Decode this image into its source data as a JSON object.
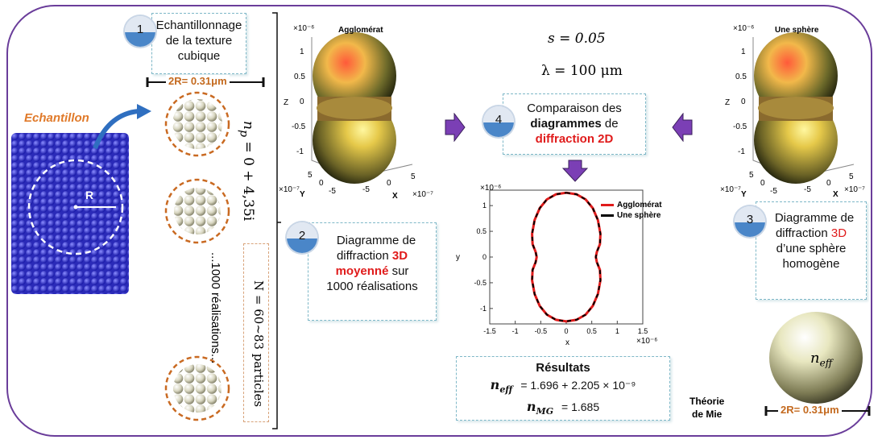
{
  "sample_label": "Echantillon",
  "radius_label": "R",
  "step1": {
    "number": "1",
    "text_line1": "Echantillonnage",
    "text_line2": "de la texture",
    "text_line3": "cubique"
  },
  "diameter_label": "2R= 0.31μm",
  "np_label": "n",
  "np_sub": "p",
  "np_value": " = 0 + 4,35i",
  "realizations_label": "...1000 réalisations...",
  "n_particles_label": "N = 60~83 particles",
  "step2": {
    "number": "2",
    "line1": "Diagramme de",
    "line2a": "diffraction ",
    "line2b": "3D",
    "line3a": "moyenné",
    "line3b": " sur",
    "line4": "1000 réalisations"
  },
  "plot_left": {
    "title": "Agglomérat",
    "exp": "×10⁻⁶",
    "z_ticks": [
      "1",
      "0.5",
      "0",
      "-0.5",
      "-1"
    ],
    "zlabel": "Z",
    "ylabel": "Y",
    "xlabel": "X",
    "exp2": "×10⁻⁷",
    "exp3": "×10⁻⁷",
    "y_ticks": [
      "5",
      "0",
      "-5"
    ],
    "x_ticks": [
      "-5",
      "0",
      "5"
    ]
  },
  "plot_right": {
    "title": "Une sphère",
    "exp": "×10⁻⁶",
    "z_ticks": [
      "1",
      "0.5",
      "0",
      "-0.5",
      "-1"
    ],
    "zlabel": "Z",
    "ylabel": "Y",
    "xlabel": "X",
    "exp2": "×10⁻⁷",
    "exp3": "×10⁻⁷",
    "y_ticks": [
      "5",
      "0",
      "-5"
    ],
    "x_ticks": [
      "-5",
      "0",
      "5"
    ]
  },
  "params": {
    "s": "s = 0.05",
    "lambda": "λ = 100 μm"
  },
  "step4": {
    "number": "4",
    "line1": "Comparaison des",
    "line2a": "diagrammes",
    "line2b": " de",
    "line3": "diffraction 2D"
  },
  "step3": {
    "number": "3",
    "line1": "Diagramme de",
    "line2a": "diffraction ",
    "line2b": "3D",
    "line3": "d’une sphère",
    "line4": "homogène"
  },
  "neff_label": "n",
  "neff_sub": "eff",
  "diameter_label2": "2R= 0.31μm",
  "results": {
    "title": "Résultats",
    "neff_name": "n",
    "neff_sub": "eff",
    "neff_value": "=   1.696 + 2.205 × 10⁻⁹",
    "nmg_name": "n",
    "nmg_sub": "MG",
    "nmg_value": "= 1.685"
  },
  "theory_line1": "Théorie",
  "theory_line2": "de Mie",
  "chart_data": {
    "type": "line",
    "title": "",
    "xlabel": "x",
    "ylabel": "y",
    "x_exp": "×10⁻⁶",
    "y_exp": "×10⁻⁶",
    "xlim": [
      -1.5,
      1.5
    ],
    "ylim": [
      -1.3,
      1.3
    ],
    "x_ticks": [
      -1.5,
      -1,
      -0.5,
      0,
      0.5,
      1,
      1.5
    ],
    "y_ticks": [
      1,
      0.5,
      0,
      -0.5,
      -1
    ],
    "legend_position": "top-right",
    "series": [
      {
        "name": "Agglomérat",
        "color": "#e01b1b",
        "style": "solid"
      },
      {
        "name": "Une sphère",
        "color": "#000000",
        "style": "dashed"
      }
    ],
    "curve_points": {
      "x": [
        0,
        0.2,
        0.38,
        0.52,
        0.62,
        0.67,
        0.66,
        0.6,
        0.58,
        0.6,
        0.66,
        0.67,
        0.62,
        0.52,
        0.38,
        0.2,
        0
      ],
      "y": [
        1.25,
        1.22,
        1.12,
        0.95,
        0.72,
        0.45,
        0.25,
        0.1,
        0,
        -0.1,
        -0.25,
        -0.45,
        -0.72,
        -0.95,
        -1.12,
        -1.22,
        -1.25
      ]
    }
  }
}
